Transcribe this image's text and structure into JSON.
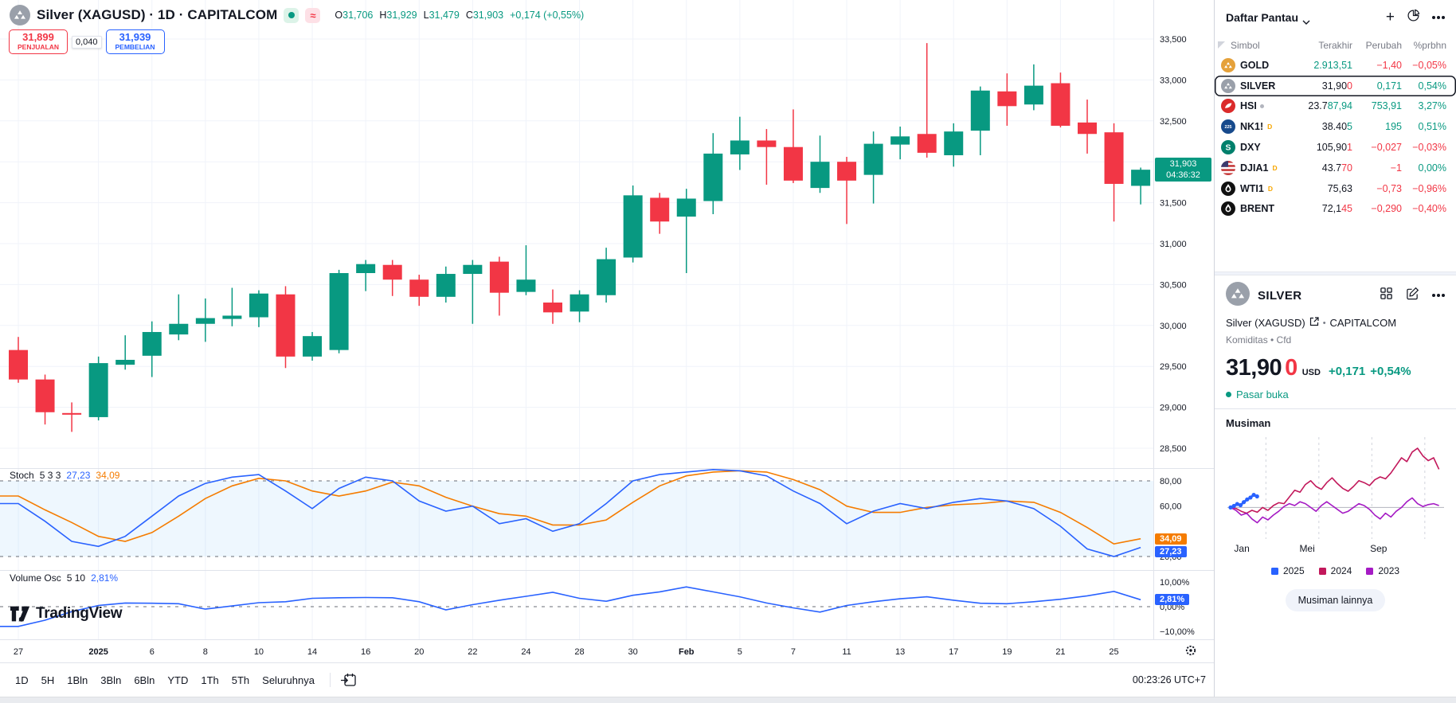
{
  "colors": {
    "up": "#089981",
    "down": "#F23645",
    "blue": "#2962FF",
    "orange": "#F57C00",
    "text": "#131722",
    "muted": "#787B86"
  },
  "header": {
    "symbol_title": "Silver (XAGUSD) · 1D · CAPITALCOM",
    "ohlc": {
      "o_label": "O",
      "o": "31,706",
      "h_label": "H",
      "h": "31,929",
      "l_label": "L",
      "l": "31,479",
      "c_label": "C",
      "c": "31,903",
      "change": "+0,174 (+0,55%)"
    },
    "sell_price": "31,899",
    "sell_label": "PENJUALAN",
    "spread": "0,040",
    "buy_price": "31,939",
    "buy_label": "PEMBELIAN"
  },
  "indicators": {
    "stoch": {
      "name": "Stoch",
      "params": "5 3 3",
      "k": "27,23",
      "d": "34,09"
    },
    "volume_osc": {
      "name": "Volume Osc",
      "params": "5 10",
      "value": "2,81%"
    }
  },
  "price_badge": {
    "price": "31,903",
    "countdown": "04:36:32"
  },
  "stoch_badges": {
    "d": "34,09",
    "k": "27,23"
  },
  "vol_badge": "2,81%",
  "toolbar": {
    "ranges": [
      "1D",
      "5H",
      "1Bln",
      "3Bln",
      "6Bln",
      "YTD",
      "1Th",
      "5Th",
      "Seluruhnya"
    ],
    "clock": "00:23:26 UTC+7"
  },
  "chart_data": {
    "type": "candlestick",
    "symbol": "XAGUSD",
    "interval": "1D",
    "price_axis": [
      {
        "v": 33.5,
        "t": "33,500"
      },
      {
        "v": 33.0,
        "t": "33,000"
      },
      {
        "v": 32.5,
        "t": "32,500"
      },
      {
        "v": 32.0,
        "t": "32,000"
      },
      {
        "v": 31.5,
        "t": "31,500"
      },
      {
        "v": 31.0,
        "t": "31,000"
      },
      {
        "v": 30.5,
        "t": "30,500"
      },
      {
        "v": 30.0,
        "t": "30,000"
      },
      {
        "v": 29.5,
        "t": "29,500"
      },
      {
        "v": 29.0,
        "t": "29,000"
      },
      {
        "v": 28.5,
        "t": "28,500"
      }
    ],
    "time_labels": [
      {
        "i": 0,
        "t": "27"
      },
      {
        "i": 3,
        "t": "2025",
        "b": true
      },
      {
        "i": 5,
        "t": "6"
      },
      {
        "i": 7,
        "t": "8"
      },
      {
        "i": 9,
        "t": "10"
      },
      {
        "i": 11,
        "t": "14"
      },
      {
        "i": 13,
        "t": "16"
      },
      {
        "i": 15,
        "t": "20"
      },
      {
        "i": 17,
        "t": "22"
      },
      {
        "i": 19,
        "t": "24"
      },
      {
        "i": 21,
        "t": "28"
      },
      {
        "i": 23,
        "t": "30"
      },
      {
        "i": 25,
        "t": "Feb",
        "b": true
      },
      {
        "i": 27,
        "t": "5"
      },
      {
        "i": 29,
        "t": "7"
      },
      {
        "i": 31,
        "t": "11"
      },
      {
        "i": 33,
        "t": "13"
      },
      {
        "i": 35,
        "t": "17"
      },
      {
        "i": 37,
        "t": "19"
      },
      {
        "i": 39,
        "t": "21"
      },
      {
        "i": 41,
        "t": "25"
      }
    ],
    "candles": [
      [
        29.7,
        29.86,
        29.3,
        29.34
      ],
      [
        29.34,
        29.4,
        28.79,
        28.94
      ],
      [
        28.93,
        29.06,
        28.7,
        28.91
      ],
      [
        28.88,
        29.62,
        28.84,
        29.54
      ],
      [
        29.52,
        29.88,
        29.46,
        29.58
      ],
      [
        29.63,
        30.05,
        29.37,
        29.92
      ],
      [
        29.89,
        30.38,
        29.82,
        30.02
      ],
      [
        30.02,
        30.33,
        29.8,
        30.09
      ],
      [
        30.08,
        30.46,
        29.99,
        30.12
      ],
      [
        30.1,
        30.43,
        29.98,
        30.39
      ],
      [
        30.38,
        30.48,
        29.48,
        29.62
      ],
      [
        29.62,
        29.92,
        29.57,
        29.87
      ],
      [
        29.7,
        30.68,
        29.66,
        30.64
      ],
      [
        30.64,
        30.8,
        30.42,
        30.75
      ],
      [
        30.74,
        30.8,
        30.36,
        30.56
      ],
      [
        30.56,
        30.62,
        30.24,
        30.35
      ],
      [
        30.35,
        30.72,
        30.28,
        30.63
      ],
      [
        30.63,
        30.8,
        30.02,
        30.74
      ],
      [
        30.78,
        30.84,
        30.12,
        30.4
      ],
      [
        30.41,
        30.98,
        30.37,
        30.56
      ],
      [
        30.28,
        30.44,
        30.02,
        30.16
      ],
      [
        30.17,
        30.43,
        30.04,
        30.38
      ],
      [
        30.37,
        30.95,
        30.28,
        30.81
      ],
      [
        30.83,
        31.71,
        30.77,
        31.59
      ],
      [
        31.56,
        31.62,
        31.12,
        31.27
      ],
      [
        31.33,
        31.67,
        30.64,
        31.55
      ],
      [
        31.52,
        32.35,
        31.36,
        32.1
      ],
      [
        32.09,
        32.55,
        31.9,
        32.26
      ],
      [
        32.26,
        32.4,
        31.72,
        32.18
      ],
      [
        32.18,
        32.64,
        31.74,
        31.77
      ],
      [
        31.68,
        32.32,
        31.62,
        32.0
      ],
      [
        32.0,
        32.06,
        31.24,
        31.77
      ],
      [
        31.84,
        32.37,
        31.49,
        32.22
      ],
      [
        32.21,
        32.43,
        32.03,
        32.31
      ],
      [
        32.34,
        33.45,
        32.05,
        32.11
      ],
      [
        32.08,
        32.47,
        31.94,
        32.37
      ],
      [
        32.38,
        32.92,
        32.08,
        32.87
      ],
      [
        32.86,
        33.08,
        32.44,
        32.68
      ],
      [
        32.7,
        33.19,
        32.63,
        32.93
      ],
      [
        32.96,
        33.09,
        32.42,
        32.44
      ],
      [
        32.48,
        32.76,
        32.1,
        32.34
      ],
      [
        32.36,
        32.47,
        31.27,
        31.73
      ],
      [
        31.706,
        31.929,
        31.479,
        31.903
      ]
    ],
    "stoch_k": [
      62,
      48,
      32,
      28,
      36,
      52,
      68,
      78,
      83,
      85,
      72,
      58,
      74,
      83,
      80,
      64,
      56,
      60,
      46,
      50,
      40,
      46,
      62,
      80,
      85,
      87,
      89,
      88,
      84,
      72,
      62,
      46,
      56,
      62,
      58,
      63,
      66,
      64,
      58,
      44,
      26,
      20,
      27.23
    ],
    "stoch_d": [
      68,
      57,
      47,
      36,
      32,
      39,
      52,
      66,
      76,
      82,
      80,
      72,
      68,
      72,
      79,
      76,
      67,
      60,
      54,
      52,
      45,
      45,
      49,
      63,
      76,
      84,
      87,
      88,
      87,
      81,
      73,
      60,
      55,
      55,
      59,
      61,
      62,
      64,
      63,
      55,
      43,
      30,
      34.09
    ],
    "stoch_axis": [
      {
        "v": 80,
        "t": "80,00"
      },
      {
        "v": 60,
        "t": "60,00"
      },
      {
        "v": 20,
        "t": "20,00"
      }
    ],
    "vol_osc": [
      -8,
      -5.5,
      -2,
      0.5,
      1.5,
      1.4,
      1.2,
      -1,
      0.3,
      1.6,
      2,
      3.4,
      3.6,
      3.7,
      3.6,
      2,
      -1.3,
      0.8,
      2.6,
      4.2,
      5.8,
      3.4,
      2.2,
      4.6,
      6,
      8,
      6,
      4,
      1.5,
      -0.5,
      -2.2,
      0.5,
      2,
      3.2,
      4,
      2.6,
      1.4,
      1.2,
      2,
      3,
      4.4,
      6.2,
      2.81
    ],
    "vol_axis": [
      {
        "v": 10,
        "t": "10,00%"
      },
      {
        "v": 0,
        "t": "0,00%"
      },
      {
        "v": -10,
        "t": "−10,00%"
      }
    ]
  },
  "watchlist": {
    "title": "Daftar Pantau",
    "columns": [
      "Simbol",
      "Terakhir",
      "Perubah",
      "%prbhn"
    ],
    "rows": [
      {
        "symbol": "GOLD",
        "icon": "gold",
        "price": [
          [
            "2.913,51",
            "up"
          ]
        ],
        "change": [
          [
            "−1,40",
            "down"
          ]
        ],
        "pct": [
          [
            "−0,05%",
            "down"
          ]
        ]
      },
      {
        "symbol": "SILVER",
        "icon": "silver",
        "selected": true,
        "price": [
          [
            "31,90",
            "text"
          ],
          [
            "0",
            "down"
          ]
        ],
        "change": [
          [
            "0,171",
            "up"
          ]
        ],
        "pct": [
          [
            "0,54%",
            "up"
          ]
        ]
      },
      {
        "symbol": "HSI",
        "icon": "hsi",
        "dot": true,
        "price": [
          [
            "23.7",
            "text"
          ],
          [
            "87,94",
            "up"
          ]
        ],
        "change": [
          [
            "753,91",
            "up"
          ]
        ],
        "pct": [
          [
            "3,27%",
            "up"
          ]
        ]
      },
      {
        "symbol": "NK1!",
        "icon": "nk225",
        "d": true,
        "price": [
          [
            "38.40",
            "text"
          ],
          [
            "5",
            "up"
          ]
        ],
        "change": [
          [
            "195",
            "up"
          ]
        ],
        "pct": [
          [
            "0,51%",
            "up"
          ]
        ]
      },
      {
        "symbol": "DXY",
        "icon": "dxy",
        "price": [
          [
            "105,90",
            "text"
          ],
          [
            "1",
            "down"
          ]
        ],
        "change": [
          [
            "−0,027",
            "down"
          ]
        ],
        "pct": [
          [
            "−0,03%",
            "down"
          ]
        ]
      },
      {
        "symbol": "DJIA1",
        "icon": "usflag",
        "d": true,
        "price": [
          [
            "43.7",
            "text"
          ],
          [
            "70",
            "down"
          ]
        ],
        "change": [
          [
            "−1",
            "down"
          ]
        ],
        "pct": [
          [
            "0,00%",
            "up"
          ]
        ]
      },
      {
        "symbol": "WTI1",
        "icon": "oil",
        "d": true,
        "price": [
          [
            "75,63",
            "text"
          ]
        ],
        "change": [
          [
            "−0,73",
            "down"
          ]
        ],
        "pct": [
          [
            "−0,96%",
            "down"
          ]
        ]
      },
      {
        "symbol": "BRENT",
        "icon": "oil",
        "price": [
          [
            "72,1",
            "text"
          ],
          [
            "45",
            "down"
          ]
        ],
        "change": [
          [
            "−0,290",
            "down"
          ]
        ],
        "pct": [
          [
            "−0,40%",
            "down"
          ]
        ]
      }
    ]
  },
  "detail": {
    "symbol": "SILVER",
    "full_name": "Silver (XAGUSD)",
    "exchange": "CAPITALCOM",
    "meta": "Komiditas • Cfd",
    "price_main": "31,90",
    "price_tail": "0",
    "currency": "USD",
    "change": "+0,171",
    "change_pct": "+0,54%",
    "market_status": "Pasar buka"
  },
  "seasonal": {
    "title": "Musiman",
    "button": "Musiman lainnya",
    "x_labels": [
      {
        "t": "Jan",
        "m": 0.2
      },
      {
        "t": "Mei",
        "m": 3.9
      },
      {
        "t": "Sep",
        "m": 7.9
      }
    ],
    "grid_months": [
      2,
      5,
      8,
      11
    ],
    "y_range": [
      -14,
      36
    ],
    "legend": [
      {
        "label": "2025",
        "color": "#2962FF"
      },
      {
        "label": "2024",
        "color": "#C2185B"
      },
      {
        "label": "2023",
        "color": "#A51BC4"
      }
    ],
    "series": [
      {
        "name": "2024",
        "color": "#C2185B",
        "width": 1.6,
        "dots": false,
        "v": [
          0,
          -0.5,
          -2,
          -3,
          -1.5,
          -2.5,
          0,
          -1.5,
          1,
          2.5,
          2,
          5.5,
          9,
          8,
          12,
          14,
          11,
          9.5,
          13,
          15.5,
          12.5,
          10,
          8.5,
          11,
          14,
          13,
          11.5,
          14.5,
          16,
          15,
          18,
          22,
          26,
          24,
          29,
          31,
          27,
          24.5,
          26,
          20
        ]
      },
      {
        "name": "2023",
        "color": "#A51BC4",
        "width": 1.6,
        "dots": false,
        "v": [
          0,
          -1.5,
          -4,
          -3,
          -6,
          -8,
          -5,
          -6.5,
          -4,
          -2,
          0.5,
          2,
          1,
          3,
          2,
          0,
          -2,
          1,
          3,
          1,
          -1,
          -3,
          -2,
          0,
          2,
          1,
          -1,
          -4,
          -6,
          -3,
          -5,
          -2,
          0,
          3,
          5,
          2,
          0.5,
          1.5,
          2,
          1
        ]
      },
      {
        "name": "2025",
        "color": "#2962FF",
        "width": 2.8,
        "dots": true,
        "x_end": 1.5,
        "v": [
          0,
          0.8,
          1.8,
          1.2,
          2.8,
          4.2,
          5.2,
          6.6,
          5.8
        ]
      }
    ]
  }
}
